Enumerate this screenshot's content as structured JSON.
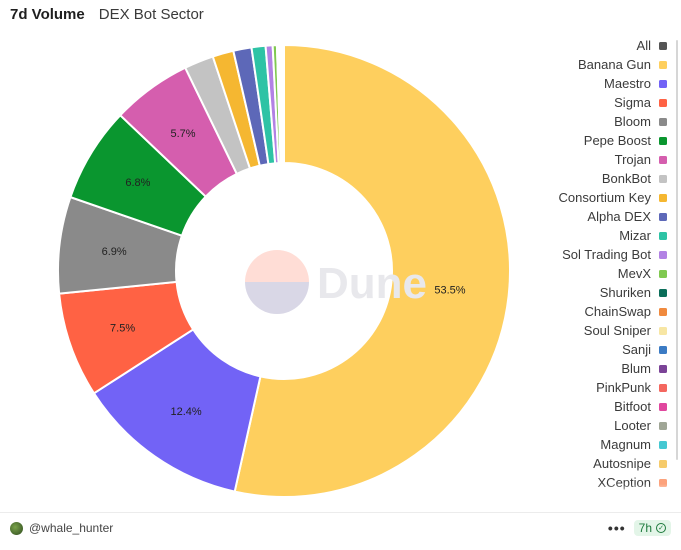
{
  "header": {
    "title": "7d Volume",
    "subtitle": "DEX Bot Sector"
  },
  "watermark": {
    "text": "Dune"
  },
  "legend": {
    "all_label": "All",
    "all_color": "#555555",
    "items": [
      {
        "label": "Banana Gun",
        "color": "#FECF5E"
      },
      {
        "label": "Maestro",
        "color": "#7263F6"
      },
      {
        "label": "Sigma",
        "color": "#FF6244"
      },
      {
        "label": "Bloom",
        "color": "#8A8A8A"
      },
      {
        "label": "Pepe Boost",
        "color": "#0A962F"
      },
      {
        "label": "Trojan",
        "color": "#D55EAE"
      },
      {
        "label": "BonkBot",
        "color": "#C3C3C3"
      },
      {
        "label": "Consortium Key",
        "color": "#F5B731"
      },
      {
        "label": "Alpha DEX",
        "color": "#5D68B8"
      },
      {
        "label": "Mizar",
        "color": "#2EC3A5"
      },
      {
        "label": "Sol Trading Bot",
        "color": "#B282E4"
      },
      {
        "label": "MevX",
        "color": "#80C950"
      },
      {
        "label": "Shuriken",
        "color": "#0B6E5A"
      },
      {
        "label": "ChainSwap",
        "color": "#F08A3E"
      },
      {
        "label": "Soul Sniper",
        "color": "#F7E6A4"
      },
      {
        "label": "Sanji",
        "color": "#3B7BC4"
      },
      {
        "label": "Blum",
        "color": "#7B4397"
      },
      {
        "label": "PinkPunk",
        "color": "#F4675F"
      },
      {
        "label": "Bitfoot",
        "color": "#E0479E"
      },
      {
        "label": "Looter",
        "color": "#A0A696"
      },
      {
        "label": "Magnum",
        "color": "#45C8D2"
      },
      {
        "label": "Autosnipe",
        "color": "#F6CB6B"
      },
      {
        "label": "XCeption",
        "color": "#FCA27C"
      }
    ]
  },
  "chart_data": {
    "type": "pie",
    "donut": true,
    "legend_position": "right",
    "categories": [
      "Banana Gun",
      "Maestro",
      "Sigma",
      "Bloom",
      "Pepe Boost",
      "Trojan",
      "BonkBot",
      "Consortium Key",
      "Alpha DEX",
      "Mizar",
      "Sol Trading Bot",
      "MevX",
      "Shuriken",
      "ChainSwap",
      "Soul Sniper",
      "Sanji",
      "Blum",
      "PinkPunk",
      "Bitfoot",
      "Looter",
      "Magnum",
      "Autosnipe",
      "XCeption"
    ],
    "values": [
      53.5,
      12.4,
      7.5,
      6.9,
      6.8,
      5.7,
      2.1,
      1.5,
      1.3,
      1.0,
      0.5,
      0.3,
      0.1,
      0.1,
      0.05,
      0.05,
      0.04,
      0.04,
      0.03,
      0.03,
      0.02,
      0.02,
      0.02
    ],
    "data_labels": [
      "53.5%",
      "12.4%",
      "7.5%",
      "6.9%",
      "6.8%",
      "5.7%",
      "",
      "",
      "",
      "",
      "",
      "",
      "",
      "",
      "",
      "",
      "",
      "",
      "",
      "",
      "",
      "",
      ""
    ]
  },
  "footer": {
    "author": "@whale_hunter",
    "more": "•••",
    "time": "7h",
    "time_icon": "check-circle-icon"
  }
}
